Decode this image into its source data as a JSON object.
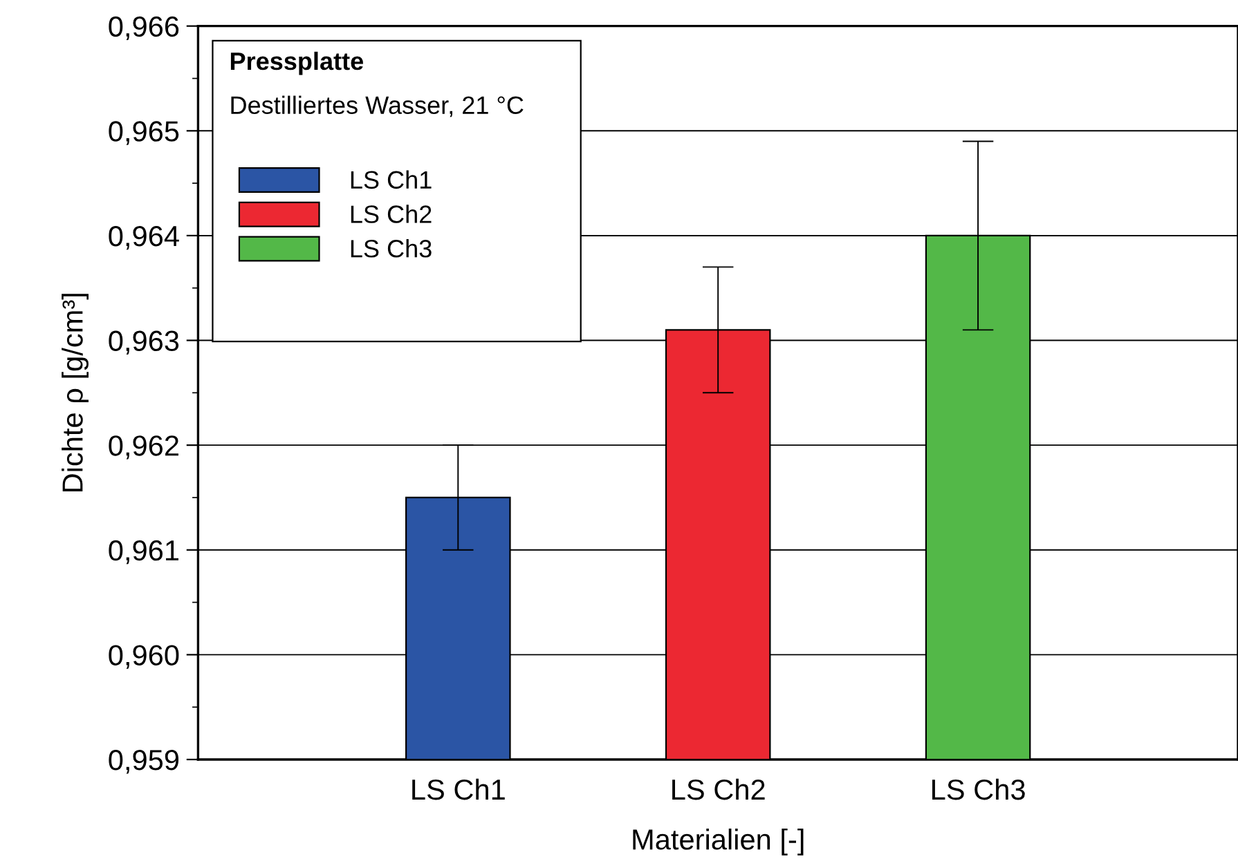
{
  "chart_data": {
    "type": "bar",
    "title": "Pressplatte",
    "subtitle": "Destilliertes Wasser, 21 °C",
    "xlabel": "Materialien [-]",
    "ylabel": "Dichte ρ [g/cm³]",
    "categories": [
      "LS Ch1",
      "LS Ch2",
      "LS Ch3"
    ],
    "series": [
      {
        "name": "LS Ch1",
        "color": "#2b55a5",
        "values": [
          0.9615,
          null,
          null
        ],
        "errors": [
          0.0005,
          null,
          null
        ]
      },
      {
        "name": "LS Ch2",
        "color": "#ec2832",
        "values": [
          null,
          0.9631,
          null
        ],
        "errors": [
          null,
          0.0006,
          null
        ]
      },
      {
        "name": "LS Ch3",
        "color": "#53b848",
        "values": [
          null,
          null,
          0.964
        ],
        "errors": [
          null,
          null,
          0.0009
        ]
      }
    ],
    "stacked": true,
    "ylim": [
      0.959,
      0.966
    ],
    "yticks": [
      {
        "value": 0.959,
        "label": "0,959"
      },
      {
        "value": 0.96,
        "label": "0,960"
      },
      {
        "value": 0.961,
        "label": "0,961"
      },
      {
        "value": 0.962,
        "label": "0,962"
      },
      {
        "value": 0.963,
        "label": "0,963"
      },
      {
        "value": 0.964,
        "label": "0,964"
      },
      {
        "value": 0.965,
        "label": "0,965"
      },
      {
        "value": 0.966,
        "label": "0,966"
      }
    ],
    "grid": "y",
    "legend": "top left"
  }
}
